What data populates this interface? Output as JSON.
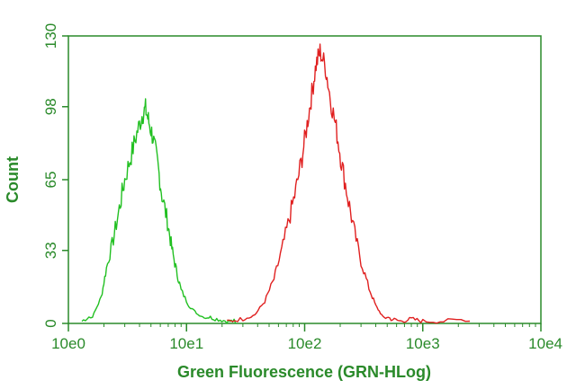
{
  "chart_data": {
    "type": "line",
    "xlabel": "Green Fluorescence (GRN-HLog)",
    "ylabel": "Count",
    "x_scale": "log",
    "xlim": [
      1,
      10000
    ],
    "ylim": [
      0,
      130
    ],
    "x_ticks": [
      "10e0",
      "10e1",
      "10e2",
      "10e3",
      "10e4"
    ],
    "y_ticks": [
      "0",
      "33",
      "65",
      "98",
      "130"
    ],
    "axis_color": "#2a8a2a",
    "series": [
      {
        "color": "#22c022",
        "x": [
          1.3,
          1.6,
          1.9,
          2.1,
          2.4,
          2.7,
          3.0,
          3.4,
          3.8,
          4.2,
          4.5,
          4.8,
          5.2,
          5.7,
          6.2,
          6.9,
          7.5,
          8.2,
          9.0,
          10.5,
          12.5,
          15,
          18,
          22,
          26
        ],
        "y": [
          0,
          3,
          12,
          25,
          38,
          52,
          65,
          76,
          86,
          94,
          97,
          91,
          84,
          72,
          58,
          46,
          34,
          24,
          15,
          8,
          4,
          2,
          1,
          0,
          0
        ]
      },
      {
        "color": "#e02020",
        "x": [
          22,
          30,
          38,
          46,
          55,
          64,
          74,
          84,
          95,
          105,
          115,
          125,
          135,
          150,
          165,
          185,
          205,
          230,
          260,
          300,
          350,
          400,
          460,
          540,
          650,
          800,
          1000,
          1500,
          2500
        ],
        "y": [
          0,
          1,
          4,
          10,
          20,
          33,
          47,
          60,
          75,
          90,
          104,
          117,
          123,
          116,
          102,
          88,
          73,
          58,
          43,
          28,
          16,
          8,
          3,
          1,
          0,
          1,
          0,
          0,
          1
        ]
      }
    ]
  }
}
